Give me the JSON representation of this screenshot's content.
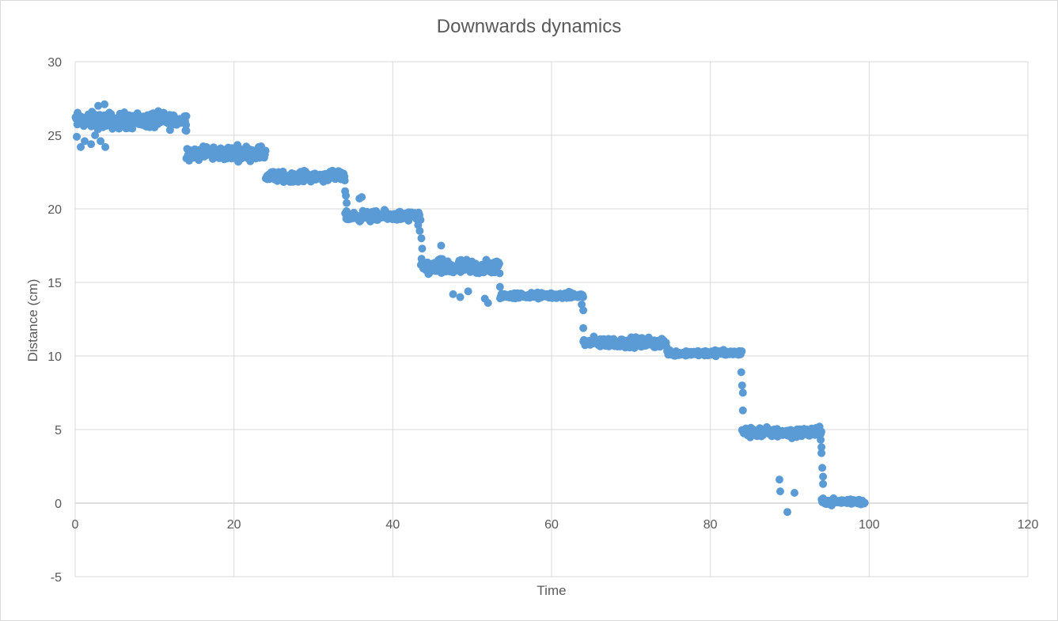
{
  "chart_data": {
    "type": "scatter",
    "title": "Downwards dynamics",
    "xlabel": "Time",
    "ylabel": "Distance (cm)",
    "xlim": [
      0,
      120
    ],
    "ylim": [
      -5,
      30
    ],
    "xticks": [
      0,
      20,
      40,
      60,
      80,
      100,
      120
    ],
    "yticks": [
      -5,
      0,
      5,
      10,
      15,
      20,
      25,
      30
    ],
    "grid": true,
    "legend": "none",
    "marker_color": "#5b9bd5",
    "series": [
      {
        "segments": [
          {
            "x_start": 0.0,
            "x_end": 14.0,
            "y_center": 26.0,
            "y_spread": 0.8
          },
          {
            "x_start": 14.0,
            "x_end": 24.0,
            "y_center": 23.8,
            "y_spread": 0.7
          },
          {
            "x_start": 24.0,
            "x_end": 34.0,
            "y_center": 22.2,
            "y_spread": 0.5
          },
          {
            "x_start": 34.0,
            "x_end": 43.5,
            "y_center": 19.5,
            "y_spread": 0.5
          },
          {
            "x_start": 43.5,
            "x_end": 53.5,
            "y_center": 16.0,
            "y_spread": 0.8
          },
          {
            "x_start": 53.5,
            "x_end": 64.0,
            "y_center": 14.1,
            "y_spread": 0.3
          },
          {
            "x_start": 64.0,
            "x_end": 74.5,
            "y_center": 10.9,
            "y_spread": 0.5
          },
          {
            "x_start": 74.5,
            "x_end": 84.0,
            "y_center": 10.2,
            "y_spread": 0.3
          },
          {
            "x_start": 84.0,
            "x_end": 94.0,
            "y_center": 4.8,
            "y_spread": 0.5
          },
          {
            "x_start": 94.0,
            "x_end": 99.5,
            "y_center": 0.1,
            "y_spread": 0.3
          }
        ],
        "points": [
          [
            0.2,
            24.9
          ],
          [
            0.7,
            24.2
          ],
          [
            1.2,
            24.6
          ],
          [
            2.0,
            24.4
          ],
          [
            2.5,
            25.0
          ],
          [
            3.2,
            24.6
          ],
          [
            3.8,
            24.2
          ],
          [
            2.9,
            27.0
          ],
          [
            3.7,
            27.1
          ],
          [
            14.0,
            25.3
          ],
          [
            14.0,
            26.3
          ],
          [
            33.8,
            22.4
          ],
          [
            34.0,
            21.2
          ],
          [
            34.1,
            20.9
          ],
          [
            34.2,
            20.4
          ],
          [
            35.8,
            20.7
          ],
          [
            36.1,
            20.8
          ],
          [
            43.0,
            19.3
          ],
          [
            43.2,
            18.9
          ],
          [
            43.4,
            18.5
          ],
          [
            43.6,
            18.0
          ],
          [
            43.7,
            17.3
          ],
          [
            46.1,
            17.5
          ],
          [
            47.6,
            14.2
          ],
          [
            48.5,
            14.0
          ],
          [
            49.5,
            14.4
          ],
          [
            51.6,
            13.9
          ],
          [
            52.0,
            13.6
          ],
          [
            53.5,
            14.7
          ],
          [
            63.8,
            13.5
          ],
          [
            64.0,
            13.1
          ],
          [
            64.0,
            11.9
          ],
          [
            83.8,
            10.2
          ],
          [
            83.9,
            8.9
          ],
          [
            84.0,
            8.0
          ],
          [
            84.1,
            7.5
          ],
          [
            84.1,
            6.3
          ],
          [
            88.7,
            1.6
          ],
          [
            88.8,
            0.8
          ],
          [
            89.7,
            -0.6
          ],
          [
            90.6,
            0.7
          ],
          [
            93.9,
            4.3
          ],
          [
            94.0,
            3.8
          ],
          [
            94.0,
            3.4
          ],
          [
            94.1,
            2.4
          ],
          [
            94.2,
            1.8
          ],
          [
            94.2,
            1.3
          ]
        ]
      }
    ]
  }
}
